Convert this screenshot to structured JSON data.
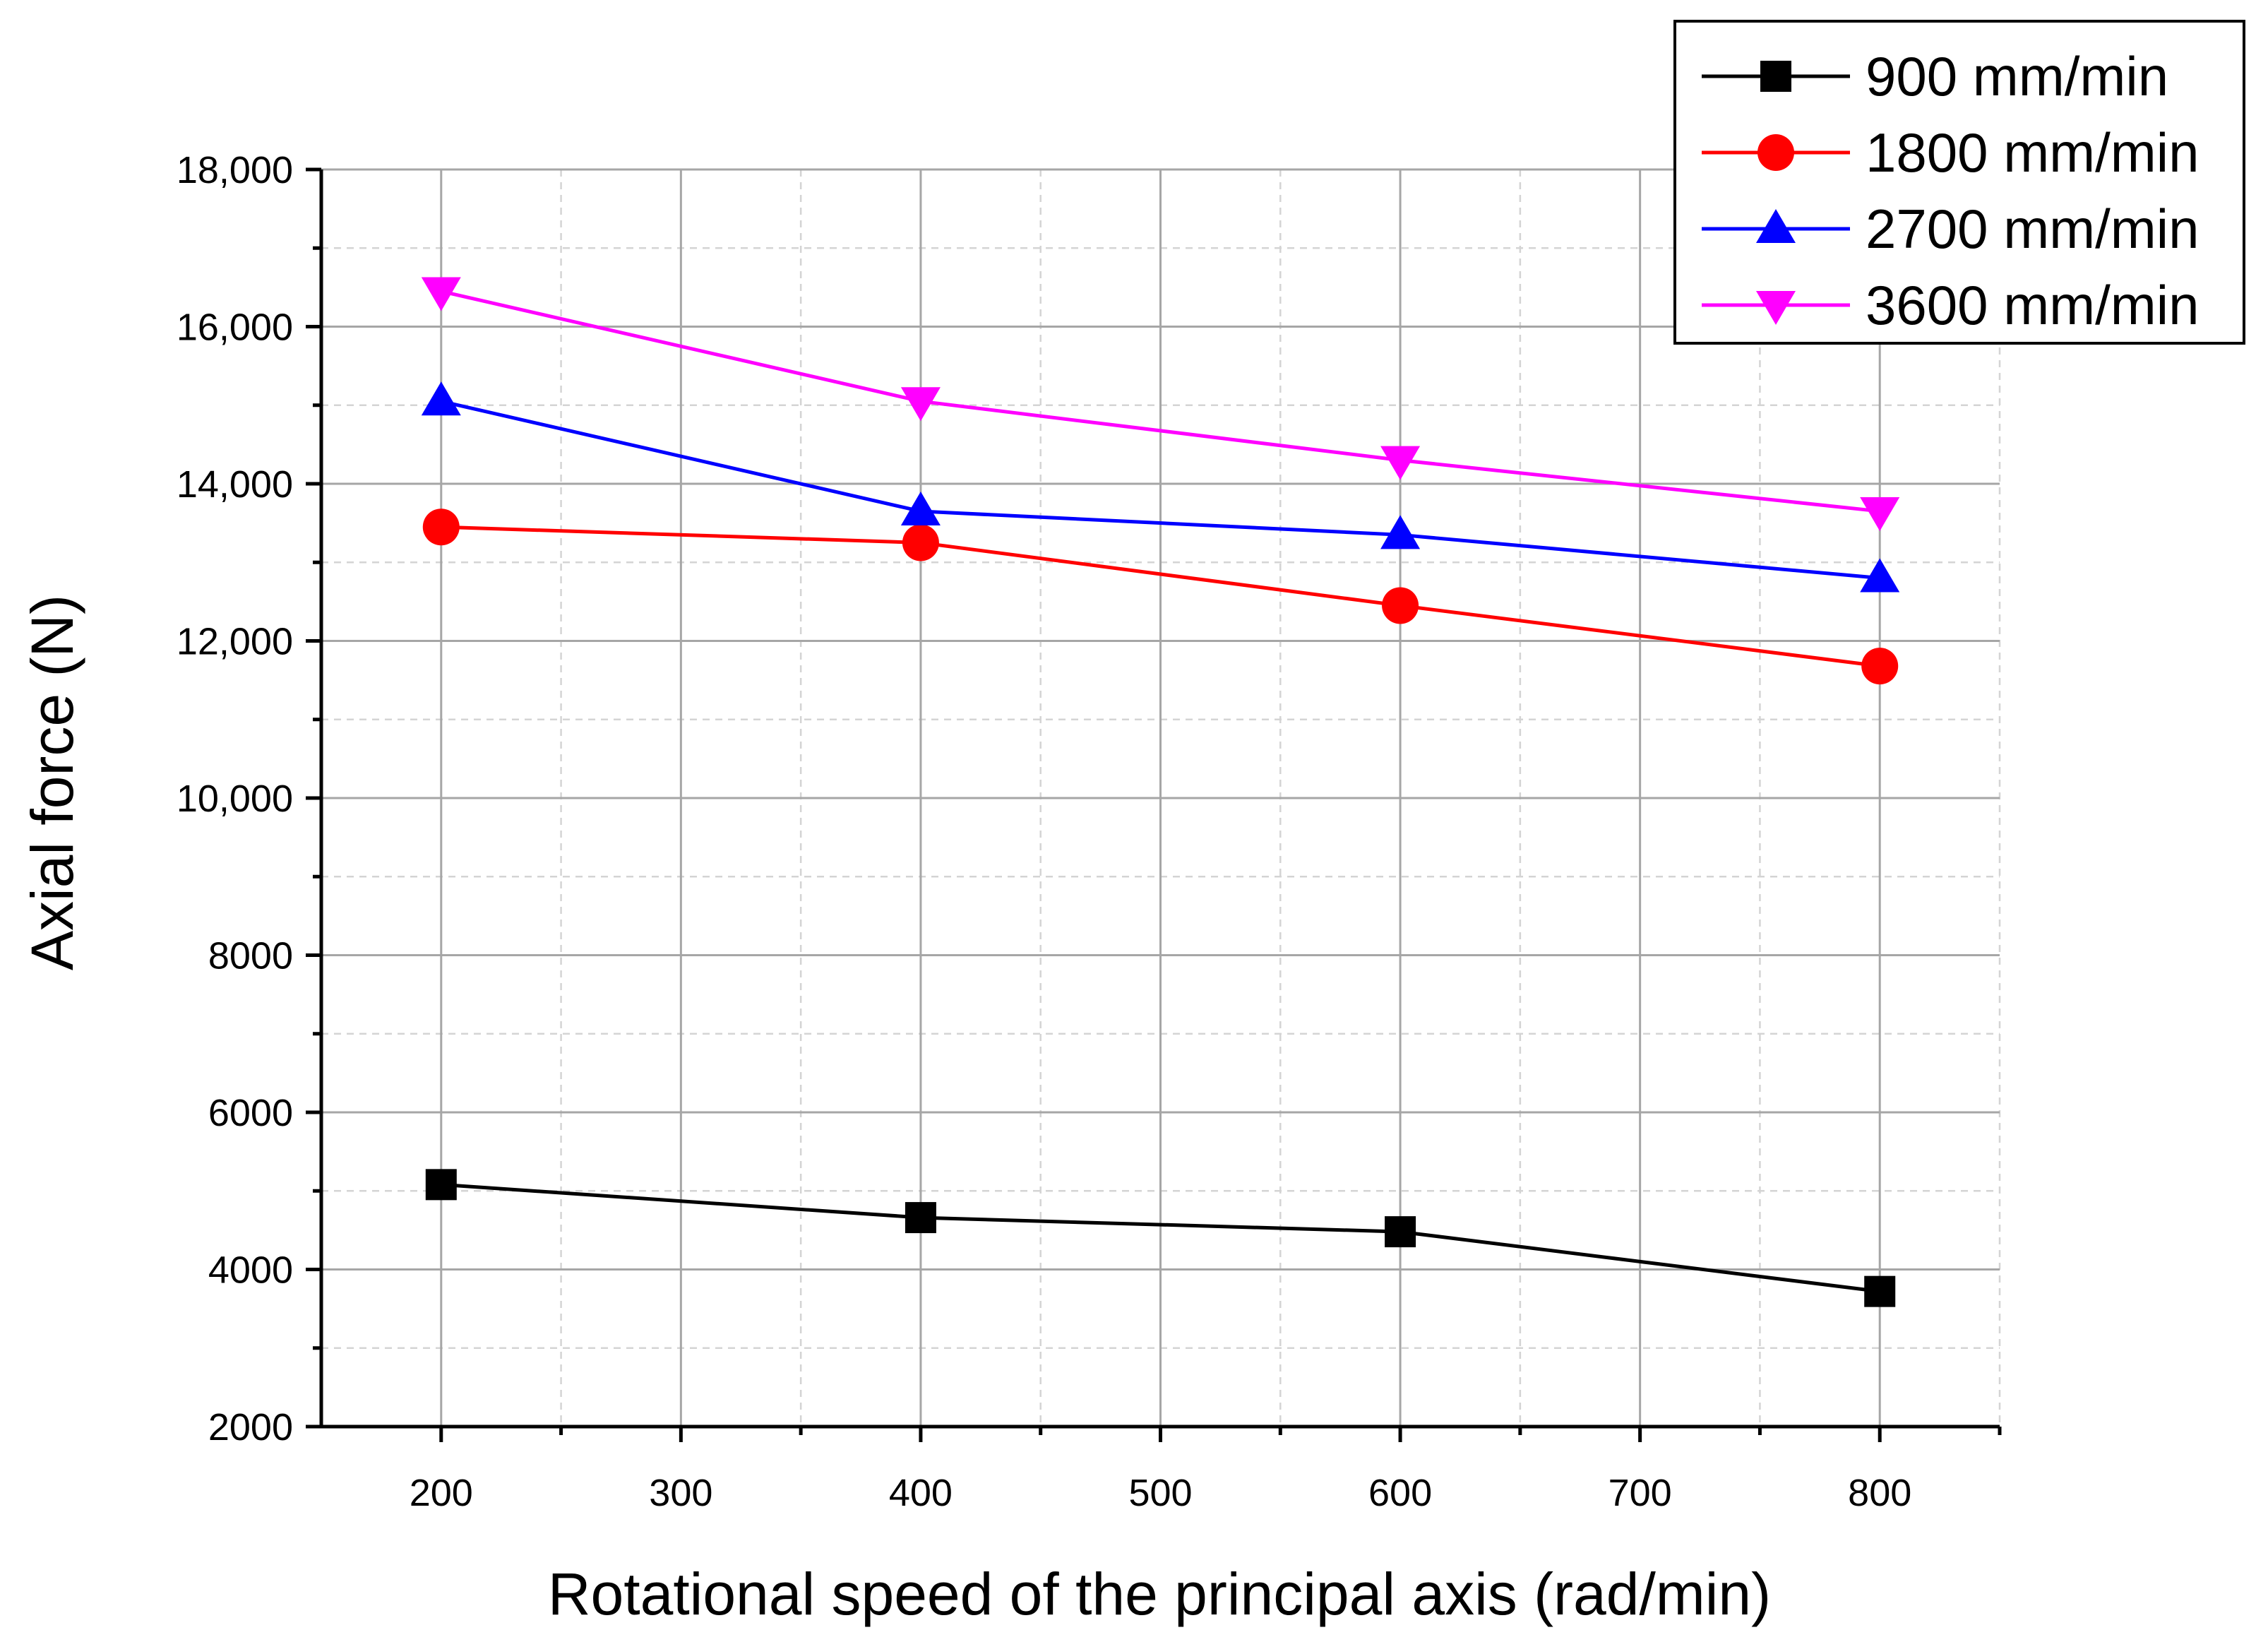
{
  "chart_data": {
    "type": "line",
    "title": "",
    "xlabel": "Rotational speed of the principal axis (rad/min)",
    "ylabel": "Axial force (N)",
    "xlim": [
      150,
      850
    ],
    "ylim": [
      2000,
      18000
    ],
    "x_ticks": [
      200,
      300,
      400,
      500,
      600,
      700,
      800
    ],
    "x_tick_labels": [
      "200",
      "300",
      "400",
      "500",
      "600",
      "700",
      "800"
    ],
    "y_ticks": [
      2000,
      4000,
      6000,
      8000,
      10000,
      12000,
      14000,
      16000,
      18000
    ],
    "y_tick_labels": [
      "2000",
      "4000",
      "6000",
      "8000",
      "10,000",
      "12,000",
      "14,000",
      "16,000",
      "18,000"
    ],
    "grid": true,
    "legend_position": "top-right, outside plot",
    "x": [
      200,
      400,
      600,
      800
    ],
    "series": [
      {
        "name": "900 mm/min",
        "color": "#000000",
        "marker": "square",
        "values": [
          5080,
          4660,
          4480,
          3720
        ]
      },
      {
        "name": "1800 mm/min",
        "color": "#ff0000",
        "marker": "circle",
        "values": [
          13450,
          13250,
          12450,
          11680
        ]
      },
      {
        "name": "2700 mm/min",
        "color": "#0000ff",
        "marker": "triangle-up",
        "values": [
          15050,
          13650,
          13350,
          12800
        ]
      },
      {
        "name": "3600 mm/min",
        "color": "#ff00ff",
        "marker": "triangle-down",
        "values": [
          16450,
          15050,
          14300,
          13650
        ]
      }
    ]
  }
}
